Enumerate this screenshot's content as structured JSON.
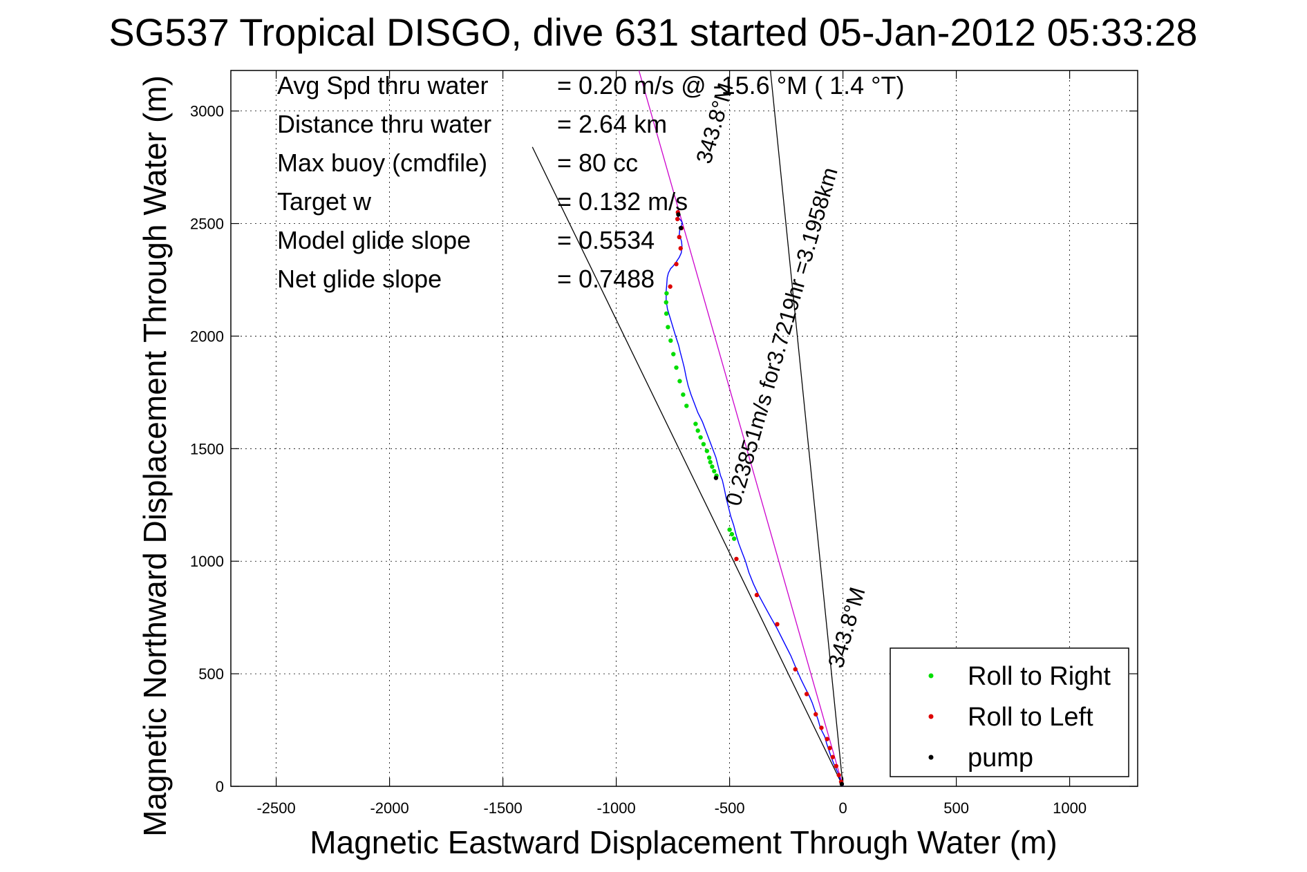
{
  "chart_data": {
    "type": "line",
    "title": "SG537 Tropical DISGO, dive 631 started 05-Jan-2012 05:33:28",
    "xlabel": "Magnetic Eastward Displacement Through Water (m)",
    "ylabel": "Magnetic Northward Displacement Through Water (m)",
    "xlim": [
      -2700,
      1300
    ],
    "ylim": [
      0,
      3180
    ],
    "xticks": [
      -2500,
      -2000,
      -1500,
      -1000,
      -500,
      0,
      500,
      1000
    ],
    "yticks": [
      0,
      500,
      1000,
      1500,
      2000,
      2500,
      3000
    ],
    "xtick_labels": [
      "-2500",
      "-2000",
      "-1500",
      "-1000",
      "-500",
      "0",
      "500",
      "1000"
    ],
    "ytick_labels": [
      "0",
      "500",
      "1000",
      "1500",
      "2000",
      "2500",
      "3000"
    ],
    "grid": true,
    "legend_position": "bottom-right",
    "stats": [
      {
        "label": "Avg Spd thru water",
        "value": "=  0.20 m/s @  -15.6 °M (  1.4 °T)"
      },
      {
        "label": "Distance thru water",
        "value": "=  2.64 km"
      },
      {
        "label": "Max buoy (cmdfile)",
        "value": "= 80 cc"
      },
      {
        "label": "Target w",
        "value": "= 0.132 m/s"
      },
      {
        "label": "Model glide slope",
        "value": "= 0.5534"
      },
      {
        "label": "Net glide slope",
        "value": "= 0.7488"
      }
    ],
    "annotations": [
      {
        "text": "343.8°M",
        "x": -585,
        "y": 2760,
        "rotation_deg": -73.8
      },
      {
        "text": "0.23851m/s for3.7219hr =3.1958km",
        "x": -455,
        "y": 1240,
        "rotation_deg": -73.8
      },
      {
        "text": "343.8°M",
        "x": -3,
        "y": 520,
        "rotation_deg": -73.8
      }
    ],
    "heading_lines": [
      {
        "name": "black-line-1",
        "color": "#000000",
        "x": [
          0,
          -1370
        ],
        "y": [
          0,
          2840
        ]
      },
      {
        "name": "black-line-2",
        "color": "#000000",
        "x": [
          0,
          -320
        ],
        "y": [
          0,
          3180
        ]
      },
      {
        "name": "magenta-line",
        "color": "#cc00cc",
        "x": [
          0,
          -900
        ],
        "y": [
          0,
          3180
        ]
      }
    ],
    "series": [
      {
        "name": "track",
        "color": "#0000ff",
        "x": [
          0,
          -12,
          -22,
          -38,
          -52,
          -62,
          -72,
          -80,
          -100,
          -108,
          -118,
          -125,
          -135,
          -148,
          -168,
          -185,
          -205,
          -230,
          -260,
          -290,
          -318,
          -345,
          -372,
          -395,
          -415,
          -430,
          -445,
          -460,
          -472,
          -482,
          -495,
          -505,
          -515,
          -523,
          -532,
          -540,
          -550,
          -560,
          -575,
          -590,
          -605,
          -620,
          -640,
          -655,
          -670,
          -683,
          -692,
          -700,
          -710,
          -718,
          -725,
          -738,
          -750,
          -762,
          -774,
          -780,
          -780,
          -778,
          -775,
          -770,
          -765,
          -760,
          -750,
          -735,
          -722,
          -713,
          -710,
          -712,
          -718,
          -722,
          -720,
          -713,
          -708,
          -712,
          -720,
          -728,
          -730,
          -734,
          -730,
          -726
        ],
        "y": [
          0,
          30,
          60,
          95,
          130,
          160,
          190,
          220,
          260,
          290,
          320,
          340,
          370,
          400,
          440,
          475,
          520,
          580,
          640,
          700,
          750,
          800,
          850,
          900,
          950,
          1000,
          1040,
          1080,
          1120,
          1160,
          1200,
          1240,
          1280,
          1320,
          1360,
          1380,
          1420,
          1460,
          1500,
          1540,
          1580,
          1620,
          1660,
          1700,
          1740,
          1780,
          1820,
          1860,
          1900,
          1930,
          1960,
          2000,
          2040,
          2080,
          2120,
          2160,
          2200,
          2220,
          2260,
          2280,
          2290,
          2300,
          2310,
          2330,
          2350,
          2370,
          2400,
          2420,
          2440,
          2450,
          2470,
          2490,
          2500,
          2510,
          2520,
          2530,
          2540,
          2550,
          2555,
          2560
        ]
      },
      {
        "name": "Roll to Right",
        "color": "#00dd00",
        "marker": "dot",
        "x": [
          -690,
          -705,
          -720,
          -735,
          -748,
          -760,
          -772,
          -779,
          -780,
          -778,
          -650,
          -640,
          -628,
          -615,
          -600,
          -590,
          -585,
          -577,
          -568,
          -558,
          -500,
          -490,
          -480
        ],
        "y": [
          1690,
          1740,
          1800,
          1860,
          1920,
          1980,
          2040,
          2100,
          2150,
          2190,
          1610,
          1580,
          1550,
          1520,
          1490,
          1460,
          1440,
          1420,
          1400,
          1380,
          1140,
          1120,
          1100
        ]
      },
      {
        "name": "Roll to Left",
        "color": "#dd0000",
        "marker": "dot",
        "x": [
          -8,
          -18,
          -30,
          -45,
          -58,
          -70,
          -95,
          -120,
          -160,
          -210,
          -290,
          -380,
          -470,
          -762,
          -735,
          -716,
          -722,
          -712,
          -730,
          -728
        ],
        "y": [
          20,
          50,
          90,
          130,
          170,
          210,
          260,
          320,
          410,
          520,
          720,
          850,
          1010,
          2220,
          2320,
          2390,
          2440,
          2480,
          2520,
          2550
        ]
      },
      {
        "name": "pump",
        "color": "#000000",
        "marker": "dot",
        "x": [
          -5,
          -560,
          -715,
          -726
        ],
        "y": [
          10,
          1370,
          2480,
          2540
        ]
      }
    ],
    "legend": [
      {
        "label": "Roll to Right",
        "color": "#00dd00"
      },
      {
        "label": "Roll to Left",
        "color": "#dd0000"
      },
      {
        "label": "pump",
        "color": "#000000"
      }
    ]
  }
}
